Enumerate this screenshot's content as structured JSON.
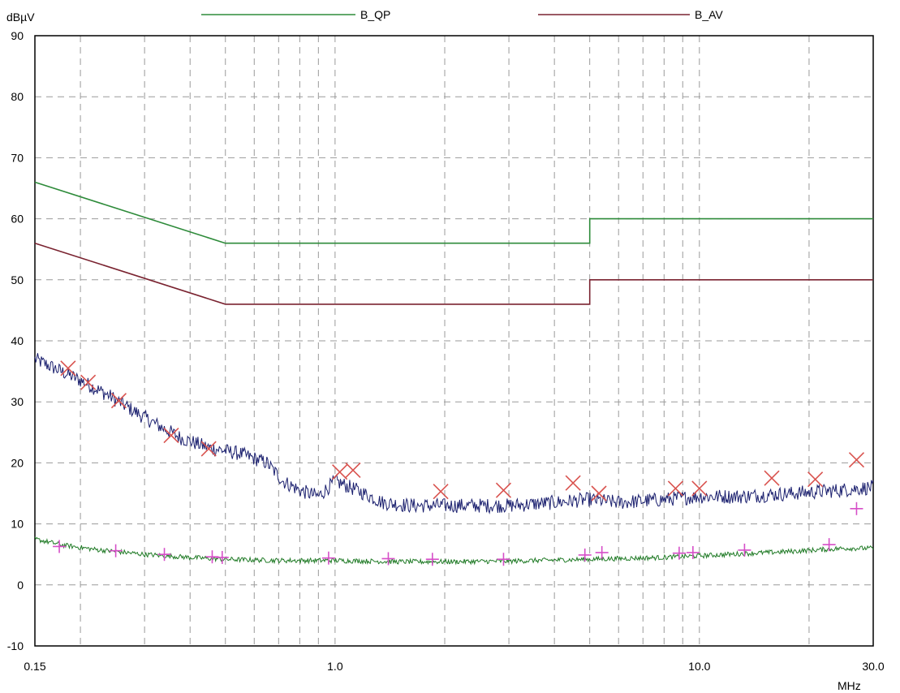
{
  "chart_data": {
    "type": "line",
    "title": "",
    "ylabel": "dBµV",
    "xlabel": "MHz",
    "xscale": "log",
    "xlim": [
      0.15,
      30.0
    ],
    "ylim": [
      -10,
      90
    ],
    "yticks": [
      -10,
      0,
      10,
      20,
      30,
      40,
      50,
      60,
      70,
      80,
      90
    ],
    "xtick_labels": [
      {
        "value": 0.15,
        "label": "0.15"
      },
      {
        "value": 1.0,
        "label": "1.0"
      },
      {
        "value": 10.0,
        "label": "10.0"
      },
      {
        "value": 30.0,
        "label": "30.0"
      }
    ],
    "grid": true,
    "legend_position": "top",
    "legend": [
      {
        "name": "B_QP",
        "color": "#2e8b3a"
      },
      {
        "name": "B_AV",
        "color": "#7a2330"
      }
    ],
    "limit_lines": [
      {
        "name": "B_QP",
        "color": "#2e8b3a",
        "points": [
          [
            0.15,
            66
          ],
          [
            0.5,
            56
          ],
          [
            5.0,
            56
          ],
          [
            5.0,
            60
          ],
          [
            30.0,
            60
          ]
        ]
      },
      {
        "name": "B_AV",
        "color": "#7a2330",
        "points": [
          [
            0.15,
            56
          ],
          [
            0.5,
            46
          ],
          [
            5.0,
            46
          ],
          [
            5.0,
            50
          ],
          [
            30.0,
            50
          ]
        ]
      }
    ],
    "traces": [
      {
        "color": "#1a1f6e",
        "points": [
          [
            0.15,
            37
          ],
          [
            0.17,
            35.5
          ],
          [
            0.2,
            33.5
          ],
          [
            0.24,
            31
          ],
          [
            0.28,
            28.5
          ],
          [
            0.33,
            26
          ],
          [
            0.38,
            24
          ],
          [
            0.45,
            22.5
          ],
          [
            0.55,
            21.5
          ],
          [
            0.65,
            20
          ],
          [
            0.72,
            17
          ],
          [
            0.8,
            15.5
          ],
          [
            0.9,
            14.5
          ],
          [
            1.0,
            17
          ],
          [
            1.1,
            16
          ],
          [
            1.2,
            15
          ],
          [
            1.35,
            13.5
          ],
          [
            1.6,
            13
          ],
          [
            2.0,
            13
          ],
          [
            3.0,
            13
          ],
          [
            4.0,
            13.5
          ],
          [
            5.0,
            14
          ],
          [
            6.0,
            13.5
          ],
          [
            8.0,
            14
          ],
          [
            10.0,
            14.5
          ],
          [
            13.0,
            14.5
          ],
          [
            18.0,
            15
          ],
          [
            24.0,
            15.5
          ],
          [
            30.0,
            16
          ]
        ]
      },
      {
        "color": "#1f7a25",
        "points": [
          [
            0.15,
            7.5
          ],
          [
            0.18,
            6.5
          ],
          [
            0.22,
            5.8
          ],
          [
            0.3,
            5
          ],
          [
            0.4,
            4.5
          ],
          [
            0.5,
            4.2
          ],
          [
            0.7,
            4
          ],
          [
            1.0,
            4
          ],
          [
            1.5,
            3.8
          ],
          [
            2.0,
            3.8
          ],
          [
            3.0,
            3.9
          ],
          [
            5.0,
            4.2
          ],
          [
            8.0,
            4.5
          ],
          [
            12.0,
            5
          ],
          [
            18.0,
            5.5
          ],
          [
            25.0,
            6
          ],
          [
            30.0,
            6
          ]
        ]
      }
    ],
    "peak_markers": [
      {
        "color": "#d9534f",
        "symbol": "x",
        "points": [
          [
            0.185,
            35.5
          ],
          [
            0.21,
            33.2
          ],
          [
            0.255,
            30.2
          ],
          [
            0.355,
            24.5
          ],
          [
            0.45,
            22.3
          ],
          [
            1.03,
            18.5
          ],
          [
            1.12,
            18.8
          ],
          [
            1.95,
            15.3
          ],
          [
            2.9,
            15.5
          ],
          [
            4.5,
            16.7
          ],
          [
            5.3,
            15
          ],
          [
            8.6,
            15.8
          ],
          [
            10.0,
            15.8
          ],
          [
            15.8,
            17.5
          ],
          [
            20.8,
            17.3
          ],
          [
            27.0,
            20.5
          ]
        ]
      },
      {
        "color": "#d64fc8",
        "symbol": "+",
        "points": [
          [
            0.175,
            6.3
          ],
          [
            0.25,
            5.6
          ],
          [
            0.34,
            5
          ],
          [
            0.46,
            4.6
          ],
          [
            0.49,
            4.5
          ],
          [
            0.96,
            4.4
          ],
          [
            1.4,
            4.3
          ],
          [
            1.85,
            4.2
          ],
          [
            2.9,
            4.2
          ],
          [
            4.85,
            4.9
          ],
          [
            5.4,
            5.3
          ],
          [
            8.8,
            5.2
          ],
          [
            9.6,
            5.3
          ],
          [
            13.3,
            5.7
          ],
          [
            22.7,
            6.6
          ],
          [
            27.0,
            12.5
          ]
        ]
      }
    ]
  }
}
